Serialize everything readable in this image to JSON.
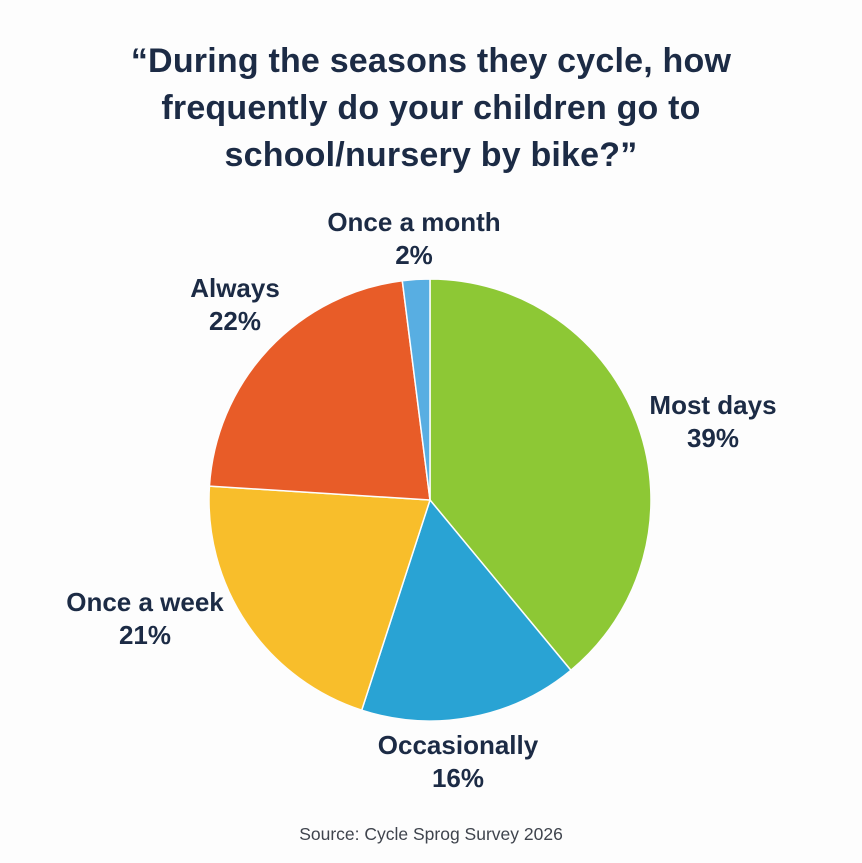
{
  "page": {
    "background": "#FDFDFD",
    "title_lines": [
      "“During the seasons they cycle, how",
      "frequently do your children go to",
      "school/nursery by bike?”"
    ],
    "title_color": "#1C2B45",
    "label_color": "#1C2B45",
    "source": "Source: Cycle Sprog Survey 2026",
    "source_color": "#3F444D"
  },
  "chart_data": {
    "type": "pie",
    "title": "“During the seasons they cycle, how frequently do your children go to school/nursery by bike?”",
    "start_angle_deg": 0,
    "direction": "clockwise",
    "total": 100,
    "legend_position": "labels-around-pie",
    "slices": [
      {
        "label": "Most days",
        "value": 39,
        "pct_label": "39%",
        "color": "#8DC835"
      },
      {
        "label": "Occasionally",
        "value": 16,
        "pct_label": "16%",
        "color": "#29A3D4"
      },
      {
        "label": "Once a week",
        "value": 21,
        "pct_label": "21%",
        "color": "#F8BE2B"
      },
      {
        "label": "Always",
        "value": 22,
        "pct_label": "22%",
        "color": "#E85C28"
      },
      {
        "label": "Once a month",
        "value": 2,
        "pct_label": "2%",
        "color": "#58AEE2"
      }
    ],
    "source": "Source: Cycle Sprog Survey 2026"
  }
}
